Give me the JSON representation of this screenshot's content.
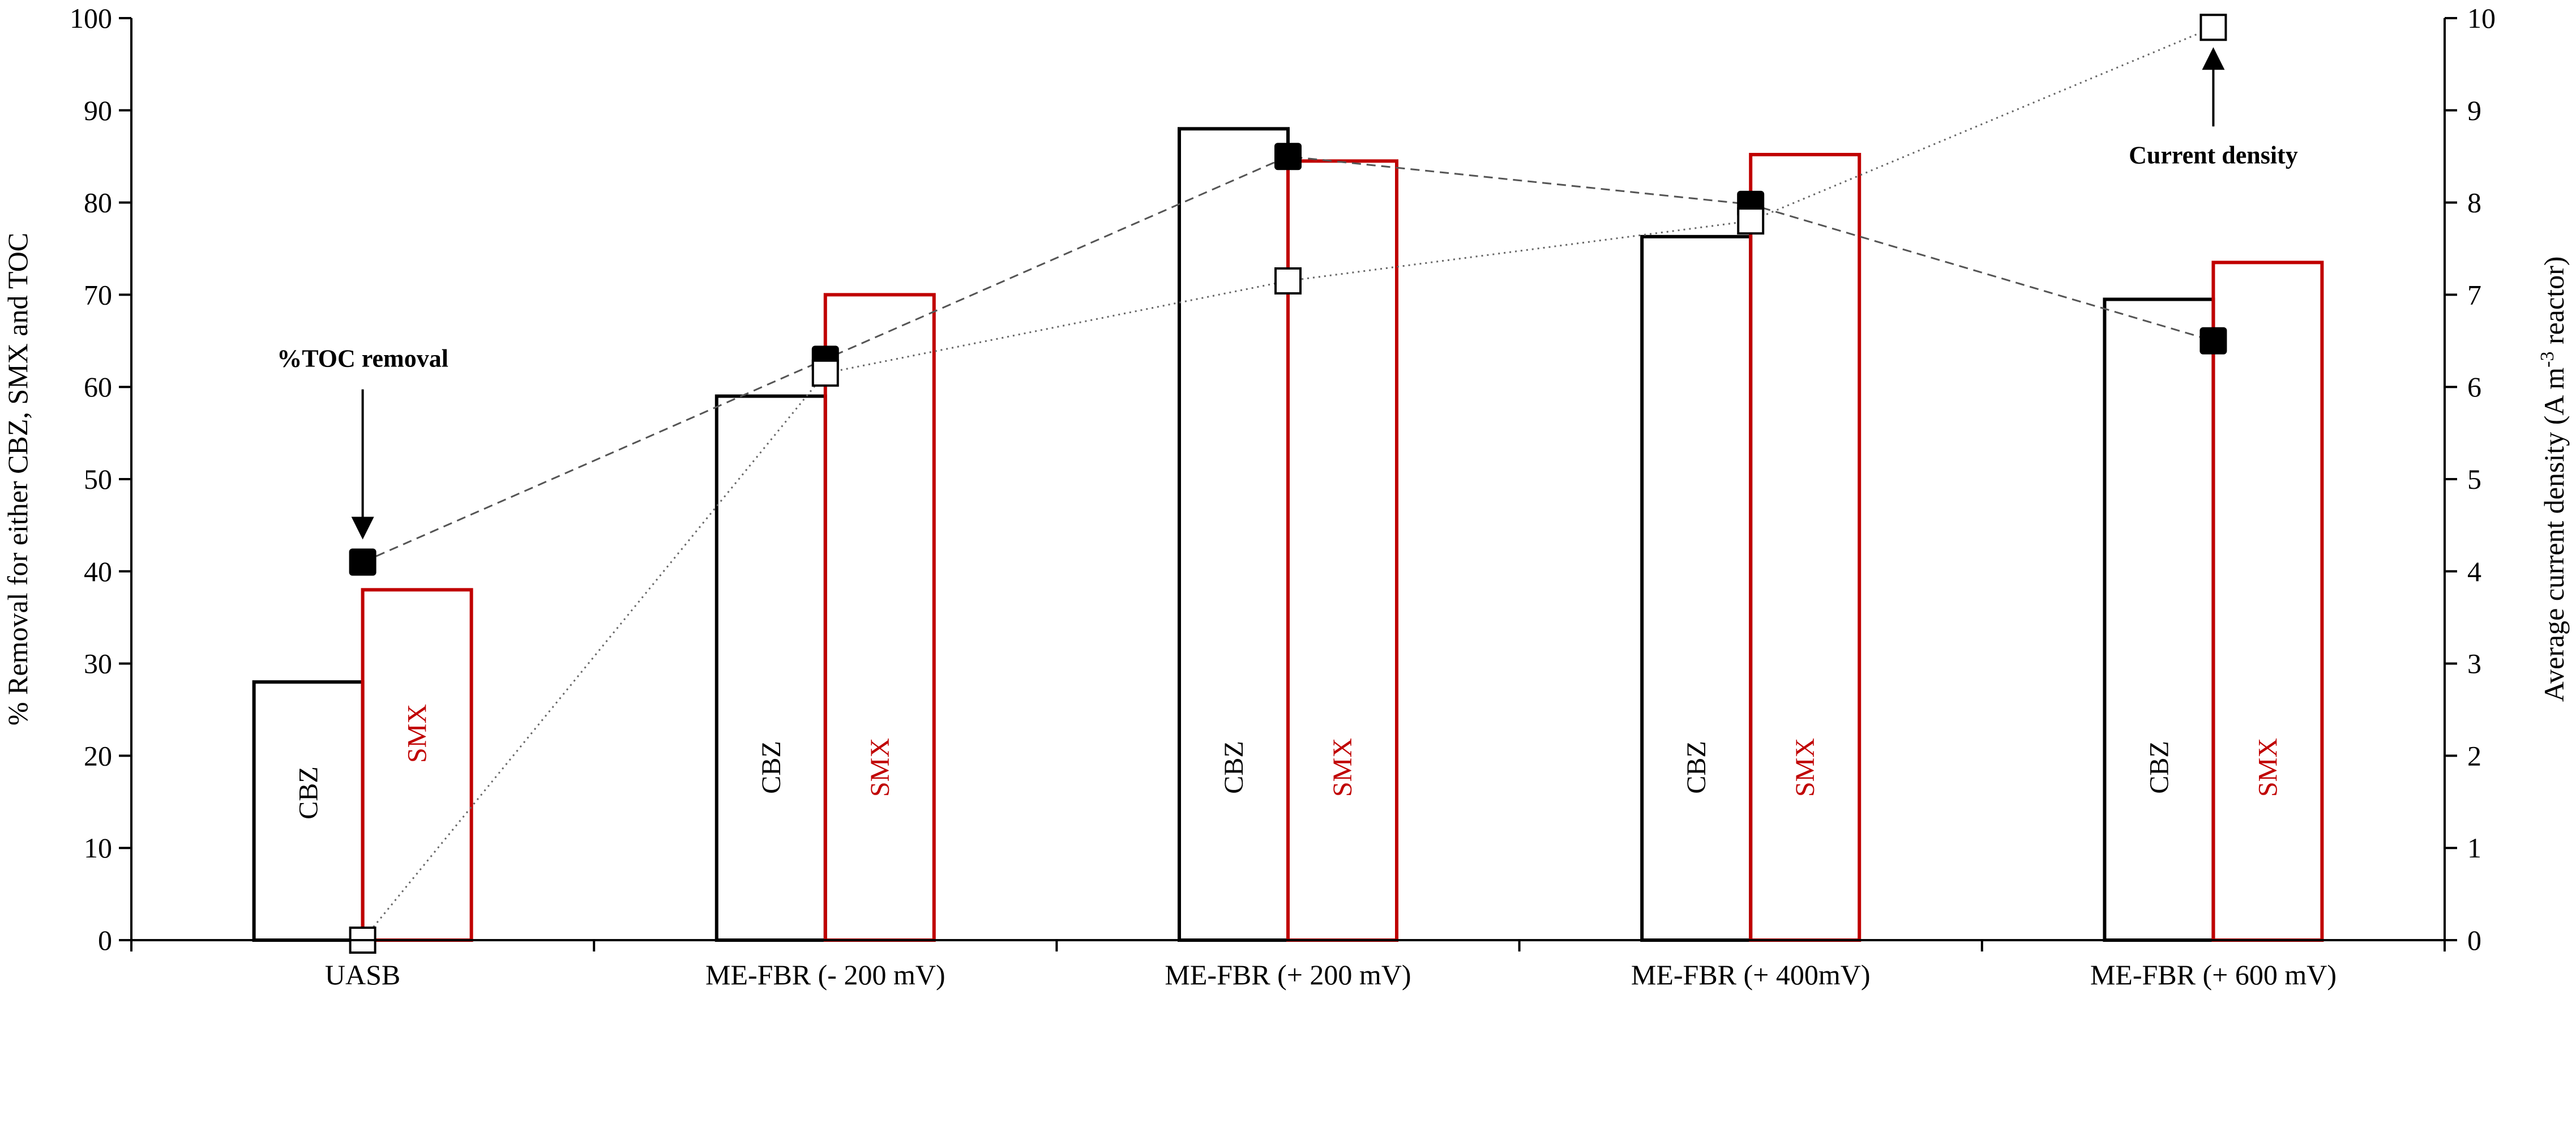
{
  "chart_data": {
    "type": "bar",
    "categories": [
      "UASB",
      "ME-FBR (- 200 mV)",
      "ME-FBR (+ 200 mV)",
      "ME-FBR (+ 400mV)",
      "ME-FBR (+ 600 mV)"
    ],
    "series": [
      {
        "name": "CBZ",
        "axis": "left",
        "kind": "bar",
        "values": [
          28,
          59,
          88,
          76.3,
          69.5
        ],
        "color": "#000000"
      },
      {
        "name": "SMX",
        "axis": "left",
        "kind": "bar",
        "values": [
          38,
          70,
          84.5,
          85.2,
          73.5
        ],
        "color": "#c00000"
      },
      {
        "name": "%TOC removal",
        "axis": "left",
        "kind": "line",
        "style": "dashed",
        "marker": "filled-square",
        "values": [
          41,
          63,
          85,
          79.8,
          65
        ],
        "color": "#000000"
      },
      {
        "name": "Current density",
        "axis": "right",
        "kind": "line",
        "style": "dotted",
        "marker": "open-square",
        "values": [
          0,
          6.15,
          7.15,
          7.8,
          9.9
        ],
        "color": "#000000"
      }
    ],
    "ylabel": "% Removal for either CBZ, SMX and TOC",
    "ylabel_right": "Average current density (A m",
    "ylabel_right_sup": "-3",
    "ylabel_right_end": " reactor)",
    "ylim": [
      0,
      100
    ],
    "ylim_right": [
      0,
      10
    ],
    "yticks": [
      "0",
      "10",
      "20",
      "30",
      "40",
      "50",
      "60",
      "70",
      "80",
      "90",
      "100"
    ],
    "yticks_right": [
      "0",
      "1",
      "2",
      "3",
      "4",
      "5",
      "6",
      "7",
      "8",
      "9",
      "10"
    ],
    "annotations": [
      {
        "text": "%TOC removal",
        "target_series": "%TOC removal",
        "target_index": 0
      },
      {
        "text": "Current density",
        "target_series": "Current density",
        "target_index": 4
      }
    ],
    "grid": false,
    "legend": "none (bars labelled inside)"
  }
}
